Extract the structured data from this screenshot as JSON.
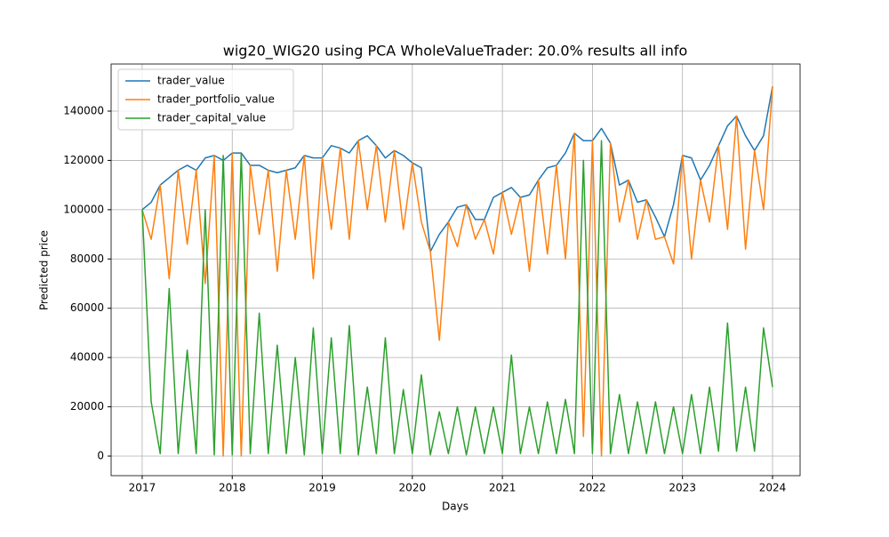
{
  "chart_data": {
    "type": "line",
    "title": "wig20_WIG20 using PCA WholeValueTrader: 20.0% results all info",
    "x_label": "Days",
    "y_label": "Predicted price",
    "x": [
      2017.0,
      2017.1,
      2017.2,
      2017.3,
      2017.4,
      2017.5,
      2017.6,
      2017.7,
      2017.8,
      2017.9,
      2018.0,
      2018.1,
      2018.2,
      2018.3,
      2018.4,
      2018.5,
      2018.6,
      2018.7,
      2018.8,
      2018.9,
      2019.0,
      2019.1,
      2019.2,
      2019.3,
      2019.4,
      2019.5,
      2019.6,
      2019.7,
      2019.8,
      2019.9,
      2020.0,
      2020.1,
      2020.2,
      2020.3,
      2020.4,
      2020.5,
      2020.6,
      2020.7,
      2020.8,
      2020.9,
      2021.0,
      2021.1,
      2021.2,
      2021.3,
      2021.4,
      2021.5,
      2021.6,
      2021.7,
      2021.8,
      2021.9,
      2022.0,
      2022.1,
      2022.2,
      2022.3,
      2022.4,
      2022.5,
      2022.6,
      2022.7,
      2022.8,
      2022.9,
      2023.0,
      2023.1,
      2023.2,
      2023.3,
      2023.4,
      2023.5,
      2023.6,
      2023.7,
      2023.8,
      2023.9,
      2024.0
    ],
    "series": [
      {
        "name": "trader_value",
        "color": "#1f77b4",
        "values": [
          100000,
          103000,
          110000,
          113000,
          116000,
          118000,
          116000,
          121000,
          122000,
          120000,
          123000,
          123000,
          118000,
          118000,
          116000,
          115000,
          116000,
          117000,
          122000,
          121000,
          121000,
          126000,
          125000,
          123000,
          128000,
          130000,
          126000,
          121000,
          124000,
          122000,
          119000,
          117000,
          83000,
          90000,
          95000,
          101000,
          102000,
          96000,
          96000,
          105000,
          107000,
          109000,
          105000,
          106000,
          112000,
          117000,
          118000,
          123000,
          131000,
          128000,
          128000,
          133000,
          127000,
          110000,
          112000,
          103000,
          104000,
          97000,
          89000,
          102000,
          122000,
          121000,
          112000,
          118000,
          126000,
          134000,
          138000,
          130000,
          124000,
          130000,
          150000
        ]
      },
      {
        "name": "trader_portfolio_value",
        "color": "#ff7f0e",
        "values": [
          100000,
          88000,
          110000,
          72000,
          116000,
          86000,
          116000,
          70000,
          122000,
          0,
          123000,
          0,
          118000,
          90000,
          116000,
          75000,
          116000,
          88000,
          122000,
          72000,
          121000,
          92000,
          125000,
          88000,
          128000,
          100000,
          126000,
          95000,
          124000,
          92000,
          119000,
          95000,
          83000,
          47000,
          95000,
          85000,
          102000,
          88000,
          96000,
          82000,
          107000,
          90000,
          105000,
          75000,
          112000,
          82000,
          118000,
          80000,
          131000,
          8000,
          128000,
          0,
          127000,
          95000,
          112000,
          88000,
          104000,
          88000,
          89000,
          78000,
          122000,
          80000,
          112000,
          95000,
          126000,
          92000,
          138000,
          84000,
          124000,
          100000,
          150000
        ]
      },
      {
        "name": "trader_capital_value",
        "color": "#2ca02c",
        "values": [
          100000,
          22000,
          1000,
          68000,
          1000,
          43000,
          1000,
          100000,
          500,
          122000,
          500,
          123000,
          1000,
          58000,
          1000,
          45000,
          1000,
          40000,
          500,
          52000,
          1000,
          48000,
          1000,
          53000,
          500,
          28000,
          1000,
          48000,
          1000,
          27000,
          1000,
          33000,
          500,
          18000,
          1000,
          20000,
          500,
          20000,
          1000,
          20000,
          1000,
          41000,
          1000,
          20000,
          1000,
          22000,
          1000,
          23000,
          1000,
          120000,
          1000,
          128000,
          1000,
          25000,
          1000,
          22000,
          1000,
          22000,
          1000,
          20000,
          1000,
          25000,
          1000,
          28000,
          2000,
          54000,
          2000,
          28000,
          2000,
          52000,
          28000
        ]
      }
    ],
    "xlim": [
      2016.655,
      2024.306
    ],
    "xticks": [
      2017,
      2018,
      2019,
      2020,
      2021,
      2022,
      2023,
      2024
    ],
    "ylim": [
      -7940,
      159120
    ],
    "yticks": [
      0,
      20000,
      40000,
      60000,
      80000,
      100000,
      120000,
      140000
    ],
    "grid": true,
    "legend": "upper left"
  }
}
